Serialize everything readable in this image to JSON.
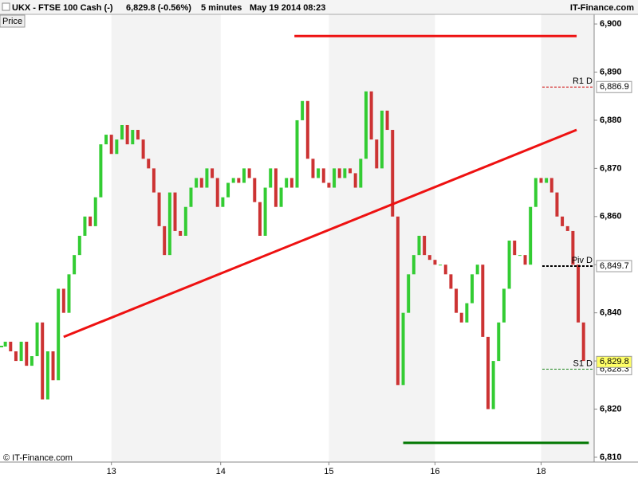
{
  "chart_data": {
    "type": "candle-line",
    "title": "UKX - FTSE 100 Cash (-)",
    "quote": "6,829.8 (-0.56%)",
    "interval": "5 minutes",
    "timestamp": "May 19 2014 08:23",
    "source": "IT-Finance.com",
    "panel_label": "Price",
    "copyright": "© IT-Finance.com",
    "series": [
      {
        "up_color": "#33cc33",
        "down_color": "#cc3333",
        "values": [
          6833,
          6834,
          6832,
          6830,
          6834,
          6829,
          6831,
          6838,
          6822,
          6832,
          6826,
          6845,
          6840,
          6848,
          6852,
          6856,
          6860,
          6858,
          6864,
          6875,
          6877,
          6873,
          6876,
          6879,
          6875,
          6878,
          6876,
          6872,
          6870,
          6865,
          6858,
          6852,
          6865,
          6857,
          6856,
          6862,
          6866,
          6868,
          6866,
          6870,
          6868,
          6862,
          6864,
          6867,
          6868,
          6867,
          6870,
          6868,
          6863,
          6856,
          6866,
          6870,
          6862,
          6866,
          6868,
          6866,
          6880,
          6884,
          6872,
          6868,
          6870,
          6867,
          6866,
          6870,
          6868,
          6870,
          6869,
          6866,
          6872,
          6886,
          6876,
          6870,
          6882,
          6878,
          6860,
          6825,
          6840,
          6848,
          6852,
          6856,
          6852,
          6851,
          6850,
          6850,
          6848,
          6845,
          6840,
          6838,
          6842,
          6848,
          6850,
          6835,
          6820,
          6830,
          6838,
          6845,
          6855,
          6852,
          6852,
          6850,
          6862,
          6868,
          6867,
          6868,
          6865,
          6860,
          6858,
          6857,
          6850,
          6838,
          6830
        ]
      }
    ],
    "xlim": [
      0,
      112
    ],
    "xticks": [
      {
        "value": 21,
        "label": "13"
      },
      {
        "value": 41.6,
        "label": "14"
      },
      {
        "value": 62,
        "label": "15"
      },
      {
        "value": 82,
        "label": "16"
      },
      {
        "value": 102,
        "label": "18"
      }
    ],
    "ylim": [
      6809,
      6902
    ],
    "yticks": [
      {
        "value": 6810,
        "label": "6,810"
      },
      {
        "value": 6820,
        "label": "6,820"
      },
      {
        "value": 6830,
        "label": "6,830"
      },
      {
        "value": 6840,
        "label": "6,840"
      },
      {
        "value": 6850,
        "label": "6,850"
      },
      {
        "value": 6860,
        "label": "6,860"
      },
      {
        "value": 6870,
        "label": "6,870"
      },
      {
        "value": 6880,
        "label": "6,880"
      },
      {
        "value": 6890,
        "label": "6,890"
      },
      {
        "value": 6900,
        "label": "6,900"
      }
    ],
    "trendlines": [
      {
        "x": [
          55.5,
          108.7
        ],
        "y": [
          6897.5,
          6897.5
        ],
        "color": "#ee1111"
      },
      {
        "x": [
          12,
          108.7
        ],
        "y": [
          6835,
          6878
        ],
        "color": "#ee1111"
      },
      {
        "x": [
          76,
          111
        ],
        "y": [
          6813,
          6813
        ],
        "color": "#007700"
      }
    ],
    "levels": [
      {
        "name": "R1 D",
        "value": 6886.9,
        "label": "6,886.9",
        "color": "#cc0000"
      },
      {
        "name": "Piv D",
        "value": 6849.7,
        "label": "6,849.7",
        "color": "#000000"
      },
      {
        "name": "S1 D",
        "value": 6828.3,
        "label": "6,828.3",
        "color": "#228822"
      }
    ],
    "last_price": {
      "value": 6829.8,
      "label": "6,829.8",
      "color": "#ffff66"
    }
  }
}
